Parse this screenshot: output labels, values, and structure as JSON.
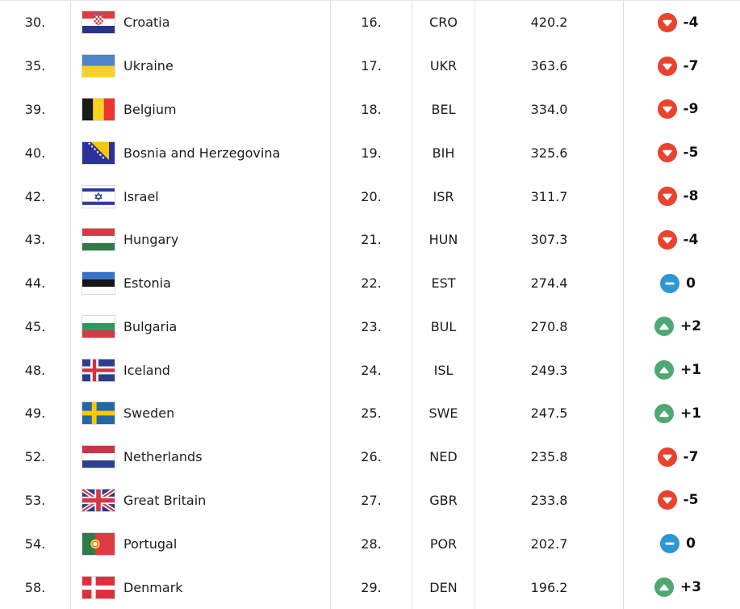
{
  "colors": {
    "trend_down": "#e8432e",
    "trend_up": "#4ea871",
    "trend_same": "#2e96d3",
    "grid_line": "#e0e0e0",
    "text": "#1c1c1c"
  },
  "table": {
    "rows": [
      {
        "world_rank": "30.",
        "country": "Croatia",
        "flag_icon": "croatia-flag-icon",
        "continental_rank": "16.",
        "code": "CRO",
        "points": "420.2",
        "trend": "down",
        "trend_icon": "caret-down-circle-icon",
        "change": "-4"
      },
      {
        "world_rank": "35.",
        "country": "Ukraine",
        "flag_icon": "ukraine-flag-icon",
        "continental_rank": "17.",
        "code": "UKR",
        "points": "363.6",
        "trend": "down",
        "trend_icon": "caret-down-circle-icon",
        "change": "-7"
      },
      {
        "world_rank": "39.",
        "country": "Belgium",
        "flag_icon": "belgium-flag-icon",
        "continental_rank": "18.",
        "code": "BEL",
        "points": "334.0",
        "trend": "down",
        "trend_icon": "caret-down-circle-icon",
        "change": "-9"
      },
      {
        "world_rank": "40.",
        "country": "Bosnia and Herzegovina",
        "flag_icon": "bosnia-and-herzegovina-flag-icon",
        "continental_rank": "19.",
        "code": "BIH",
        "points": "325.6",
        "trend": "down",
        "trend_icon": "caret-down-circle-icon",
        "change": "-5"
      },
      {
        "world_rank": "42.",
        "country": "Israel",
        "flag_icon": "israel-flag-icon",
        "continental_rank": "20.",
        "code": "ISR",
        "points": "311.7",
        "trend": "down",
        "trend_icon": "caret-down-circle-icon",
        "change": "-8"
      },
      {
        "world_rank": "43.",
        "country": "Hungary",
        "flag_icon": "hungary-flag-icon",
        "continental_rank": "21.",
        "code": "HUN",
        "points": "307.3",
        "trend": "down",
        "trend_icon": "caret-down-circle-icon",
        "change": "-4"
      },
      {
        "world_rank": "44.",
        "country": "Estonia",
        "flag_icon": "estonia-flag-icon",
        "continental_rank": "22.",
        "code": "EST",
        "points": "274.4",
        "trend": "same",
        "trend_icon": "minus-circle-icon",
        "change": "0"
      },
      {
        "world_rank": "45.",
        "country": "Bulgaria",
        "flag_icon": "bulgaria-flag-icon",
        "continental_rank": "23.",
        "code": "BUL",
        "points": "270.8",
        "trend": "up",
        "trend_icon": "caret-up-circle-icon",
        "change": "+2"
      },
      {
        "world_rank": "48.",
        "country": "Iceland",
        "flag_icon": "iceland-flag-icon",
        "continental_rank": "24.",
        "code": "ISL",
        "points": "249.3",
        "trend": "up",
        "trend_icon": "caret-up-circle-icon",
        "change": "+1"
      },
      {
        "world_rank": "49.",
        "country": "Sweden",
        "flag_icon": "sweden-flag-icon",
        "continental_rank": "25.",
        "code": "SWE",
        "points": "247.5",
        "trend": "up",
        "trend_icon": "caret-up-circle-icon",
        "change": "+1"
      },
      {
        "world_rank": "52.",
        "country": "Netherlands",
        "flag_icon": "netherlands-flag-icon",
        "continental_rank": "26.",
        "code": "NED",
        "points": "235.8",
        "trend": "down",
        "trend_icon": "caret-down-circle-icon",
        "change": "-7"
      },
      {
        "world_rank": "53.",
        "country": "Great Britain",
        "flag_icon": "great-britain-flag-icon",
        "continental_rank": "27.",
        "code": "GBR",
        "points": "233.8",
        "trend": "down",
        "trend_icon": "caret-down-circle-icon",
        "change": "-5"
      },
      {
        "world_rank": "54.",
        "country": "Portugal",
        "flag_icon": "portugal-flag-icon",
        "continental_rank": "28.",
        "code": "POR",
        "points": "202.7",
        "trend": "same",
        "trend_icon": "minus-circle-icon",
        "change": "0"
      },
      {
        "world_rank": "58.",
        "country": "Denmark",
        "flag_icon": "denmark-flag-icon",
        "continental_rank": "29.",
        "code": "DEN",
        "points": "196.2",
        "trend": "up",
        "trend_icon": "caret-up-circle-icon",
        "change": "+3"
      }
    ]
  }
}
